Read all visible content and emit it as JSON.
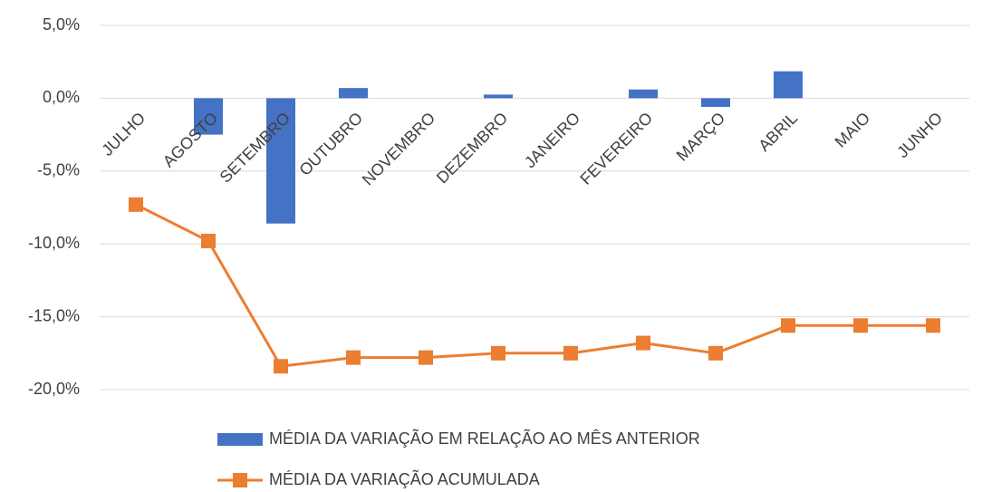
{
  "chart_data": {
    "type": "bar",
    "categories": [
      "JULHO",
      "AGOSTO",
      "SETEMBRO",
      "OUTUBRO",
      "NOVEMBRO",
      "DEZEMBRO",
      "JANEIRO",
      "FEVEREIRO",
      "MARÇO",
      "ABRIL",
      "MAIO",
      "JUNHO"
    ],
    "series": [
      {
        "name": "MÉDIA DA VARIAÇÃO EM RELAÇÃO AO MÊS ANTERIOR",
        "type": "bar",
        "color": "#4472c4",
        "values": [
          0,
          -2.5,
          -8.6,
          0.7,
          0,
          0.25,
          0,
          0.6,
          -0.6,
          1.85,
          0,
          0
        ]
      },
      {
        "name": "MÉDIA DA VARIAÇÃO ACUMULADA",
        "type": "line",
        "color": "#ed7d31",
        "values": [
          -7.3,
          -9.8,
          -18.4,
          -17.8,
          -17.8,
          -17.5,
          -17.5,
          -16.8,
          -17.5,
          -15.6,
          -15.6,
          -15.6
        ]
      }
    ],
    "ylim": [
      -20,
      5
    ],
    "yticks": [
      {
        "value": -20,
        "label": "-20,0%"
      },
      {
        "value": -15,
        "label": "-15,0%"
      },
      {
        "value": -10,
        "label": "-10,0%"
      },
      {
        "value": -5,
        "label": "-5,0%"
      },
      {
        "value": 0,
        "label": "0,0%"
      },
      {
        "value": 5,
        "label": "5,0%"
      }
    ],
    "grid": true,
    "legend": "bottom"
  }
}
